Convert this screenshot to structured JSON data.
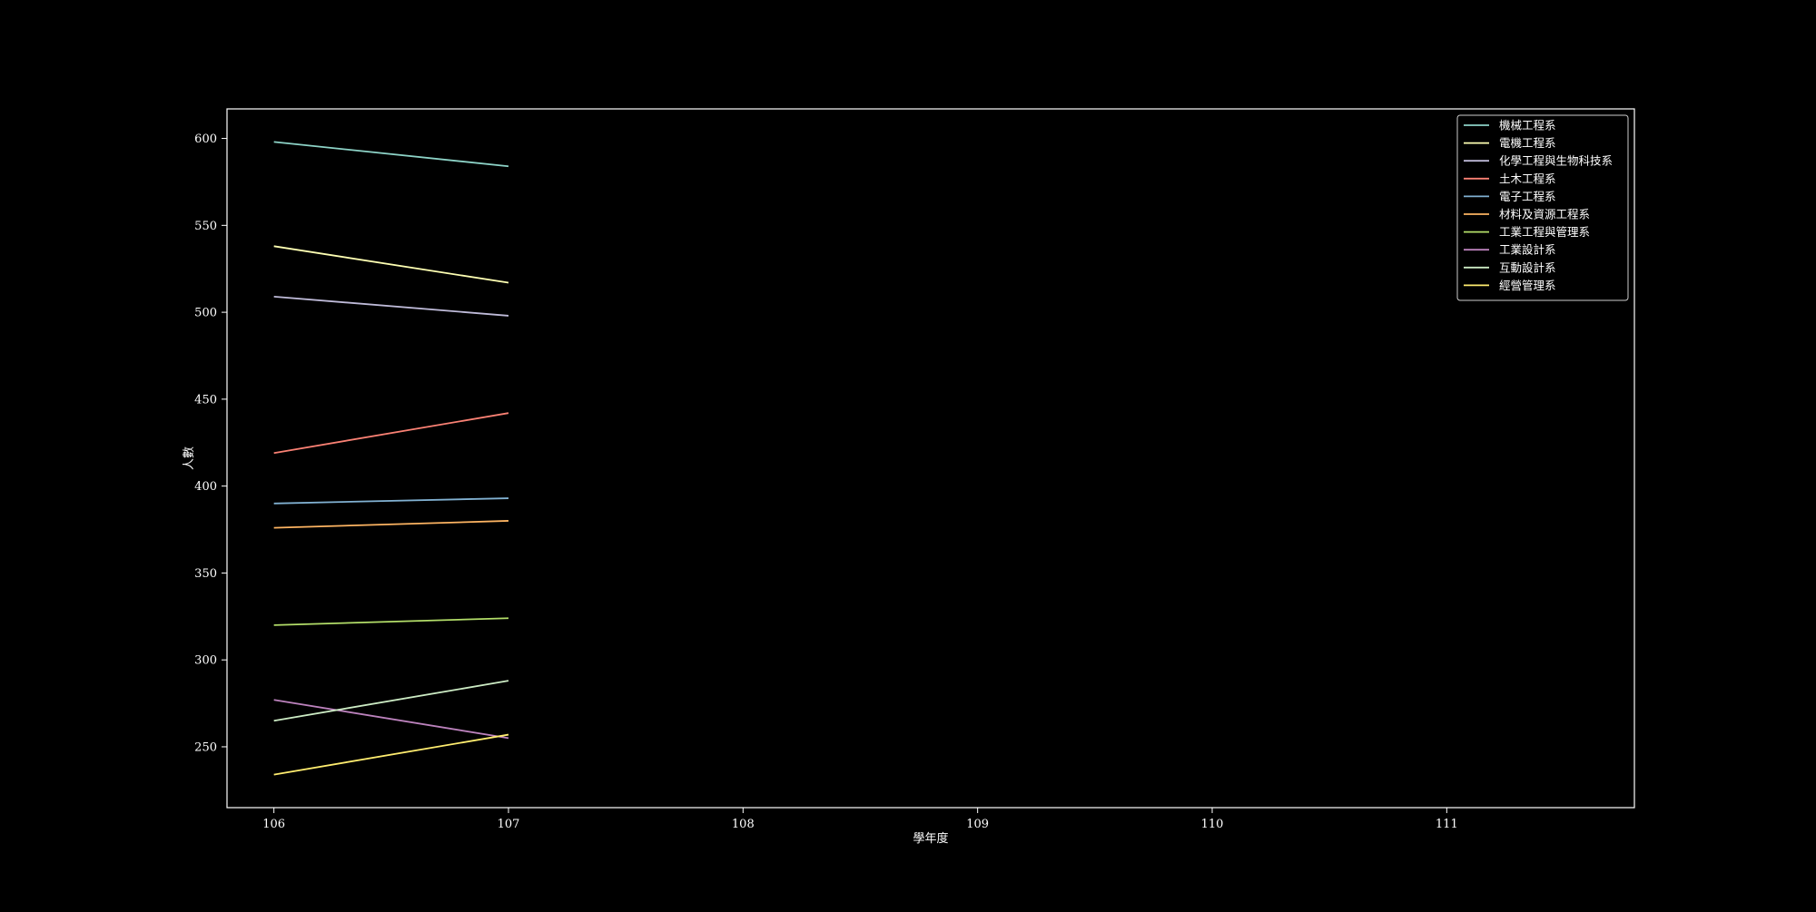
{
  "chart_data": {
    "type": "line",
    "title": "",
    "xlabel": "學年度",
    "ylabel": "人數",
    "xlim": [
      105.8,
      111.8
    ],
    "ylim": [
      215,
      617
    ],
    "x_ticks": [
      106,
      107,
      108,
      109,
      110,
      111
    ],
    "y_ticks": [
      250,
      300,
      350,
      400,
      450,
      500,
      550,
      600
    ],
    "x": [
      106,
      107
    ],
    "grid": false,
    "legend_position": "top-right",
    "series": [
      {
        "name": "機械工程系",
        "color": "#8dd3c7",
        "values": [
          598,
          584
        ]
      },
      {
        "name": "電機工程系",
        "color": "#feffb3",
        "values": [
          538,
          517
        ]
      },
      {
        "name": "化學工程與生物科技系",
        "color": "#bfbbd9",
        "values": [
          509,
          498
        ]
      },
      {
        "name": "土木工程系",
        "color": "#fa8174",
        "values": [
          419,
          442
        ]
      },
      {
        "name": "電子工程系",
        "color": "#81b1d2",
        "values": [
          390,
          393
        ]
      },
      {
        "name": "材料及資源工程系",
        "color": "#fdb462",
        "values": [
          376,
          380
        ]
      },
      {
        "name": "工業工程與管理系",
        "color": "#b3de69",
        "values": [
          320,
          324
        ]
      },
      {
        "name": "工業設計系",
        "color": "#bc82bd",
        "values": [
          277,
          255
        ]
      },
      {
        "name": "互動設計系",
        "color": "#ccebc4",
        "values": [
          265,
          288
        ]
      },
      {
        "name": "經營管理系",
        "color": "#ffed6f",
        "values": [
          234,
          257
        ]
      }
    ]
  }
}
